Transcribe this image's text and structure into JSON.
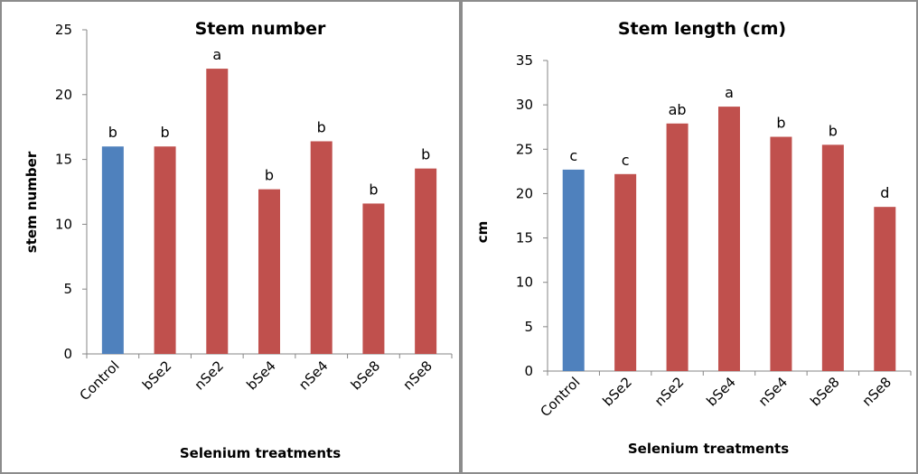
{
  "colors": {
    "control": "#4f81bd",
    "treatment": "#c0504d",
    "axis": "#868686",
    "panel_border": "#8c8c8c"
  },
  "chart_data": [
    {
      "type": "bar",
      "title": "Stem number",
      "xlabel": "Selenium treatments",
      "ylabel": "stem number",
      "categories": [
        "Control",
        "bSe2",
        "nSe2",
        "bSe4",
        "nSe4",
        "bSe8",
        "nSe8"
      ],
      "values": [
        16.0,
        16.0,
        22.0,
        12.7,
        16.4,
        11.6,
        14.3
      ],
      "labels": [
        "b",
        "b",
        "a",
        "b",
        "b",
        "b",
        "b"
      ],
      "ylim": [
        0,
        25
      ],
      "yticks": [
        "0",
        "5",
        "10",
        "15",
        "20",
        "25"
      ],
      "grid": false,
      "legend": "none"
    },
    {
      "type": "bar",
      "title": "Stem length (cm)",
      "xlabel": "Selenium  treatments",
      "ylabel": "cm",
      "categories": [
        "Control",
        "bSe2",
        "nSe2",
        "bSe4",
        "nSe4",
        "bSe8",
        "nSe8"
      ],
      "values": [
        22.7,
        22.2,
        27.9,
        29.8,
        26.4,
        25.5,
        18.5
      ],
      "labels": [
        "c",
        "c",
        "ab",
        "a",
        "b",
        "b",
        "d"
      ],
      "ylim": [
        0,
        35
      ],
      "yticks": [
        "0",
        "5",
        "10",
        "15",
        "20",
        "25",
        "30",
        "35"
      ],
      "grid": false,
      "legend": "none"
    }
  ]
}
